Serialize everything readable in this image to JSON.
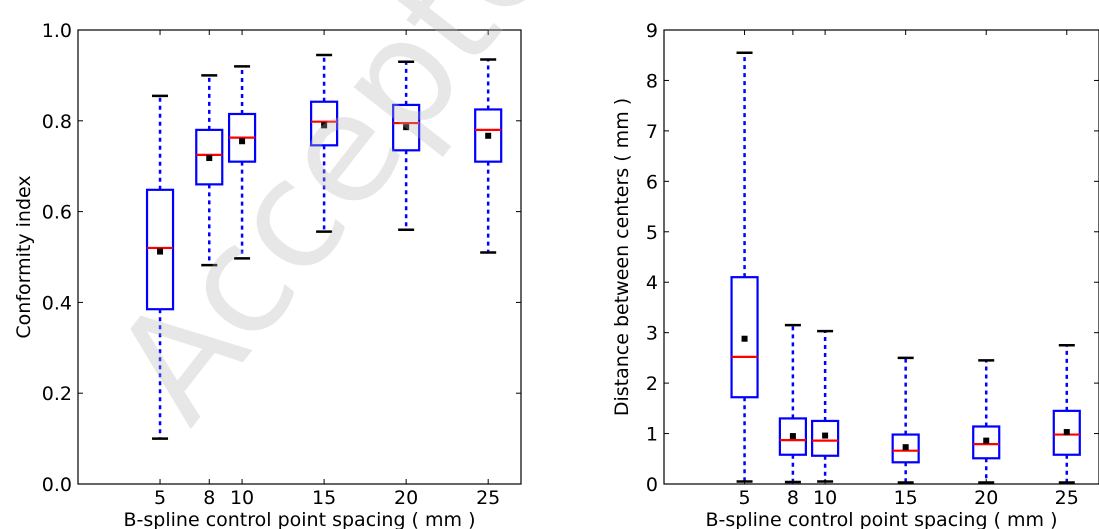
{
  "watermark": {
    "text": "Accepted"
  },
  "chart_data": [
    {
      "type": "box",
      "title": "",
      "xlabel": "B-spline control point spacing ( mm )",
      "ylabel": "Conformity index",
      "ylim": [
        0.0,
        1.0
      ],
      "yticks": [
        0.0,
        0.2,
        0.4,
        0.6,
        0.8,
        1.0
      ],
      "ytick_labels": [
        "0.0",
        "0.2",
        "0.4",
        "0.6",
        "0.8",
        "1.0"
      ],
      "xlim": [
        0,
        27
      ],
      "categories": [
        "5",
        "8",
        "10",
        "15",
        "20",
        "25"
      ],
      "positions": [
        5,
        8,
        10,
        15,
        20,
        25
      ],
      "boxes": [
        {
          "whisker_low": 0.1,
          "q1": 0.385,
          "median": 0.52,
          "q3": 0.648,
          "whisker_high": 0.855,
          "mean": 0.512
        },
        {
          "whisker_low": 0.482,
          "q1": 0.66,
          "median": 0.725,
          "q3": 0.78,
          "whisker_high": 0.9,
          "mean": 0.718
        },
        {
          "whisker_low": 0.497,
          "q1": 0.71,
          "median": 0.763,
          "q3": 0.815,
          "whisker_high": 0.92,
          "mean": 0.755
        },
        {
          "whisker_low": 0.556,
          "q1": 0.746,
          "median": 0.798,
          "q3": 0.842,
          "whisker_high": 0.945,
          "mean": 0.79
        },
        {
          "whisker_low": 0.56,
          "q1": 0.735,
          "median": 0.795,
          "q3": 0.835,
          "whisker_high": 0.93,
          "mean": 0.786
        },
        {
          "whisker_low": 0.51,
          "q1": 0.71,
          "median": 0.78,
          "q3": 0.825,
          "whisker_high": 0.935,
          "mean": 0.767
        }
      ],
      "colors": {
        "box": "#0000ff",
        "median": "#ff0000",
        "mean": "#000000",
        "cap": "#000000"
      },
      "grid": false
    },
    {
      "type": "box",
      "title": "",
      "xlabel": "B-spline control point spacing ( mm )",
      "ylabel": "Distance between centers ( mm )",
      "ylim": [
        0,
        9
      ],
      "yticks": [
        0,
        1,
        2,
        3,
        4,
        5,
        6,
        7,
        8,
        9
      ],
      "ytick_labels": [
        "0",
        "1",
        "2",
        "3",
        "4",
        "5",
        "6",
        "7",
        "8",
        "9"
      ],
      "xlim": [
        0,
        27
      ],
      "categories": [
        "5",
        "8",
        "10",
        "15",
        "20",
        "25"
      ],
      "positions": [
        5,
        8,
        10,
        15,
        20,
        25
      ],
      "boxes": [
        {
          "whisker_low": 0.05,
          "q1": 1.72,
          "median": 2.52,
          "q3": 4.1,
          "whisker_high": 8.55,
          "mean": 2.88
        },
        {
          "whisker_low": 0.04,
          "q1": 0.58,
          "median": 0.87,
          "q3": 1.3,
          "whisker_high": 3.15,
          "mean": 0.95
        },
        {
          "whisker_low": 0.05,
          "q1": 0.56,
          "median": 0.86,
          "q3": 1.25,
          "whisker_high": 3.03,
          "mean": 0.96
        },
        {
          "whisker_low": 0.03,
          "q1": 0.43,
          "median": 0.66,
          "q3": 0.98,
          "whisker_high": 2.5,
          "mean": 0.73
        },
        {
          "whisker_low": 0.03,
          "q1": 0.51,
          "median": 0.79,
          "q3": 1.14,
          "whisker_high": 2.45,
          "mean": 0.86
        },
        {
          "whisker_low": 0.03,
          "q1": 0.58,
          "median": 0.98,
          "q3": 1.45,
          "whisker_high": 2.75,
          "mean": 1.03
        }
      ],
      "colors": {
        "box": "#0000ff",
        "median": "#ff0000",
        "mean": "#000000",
        "cap": "#000000"
      },
      "grid": false
    }
  ]
}
